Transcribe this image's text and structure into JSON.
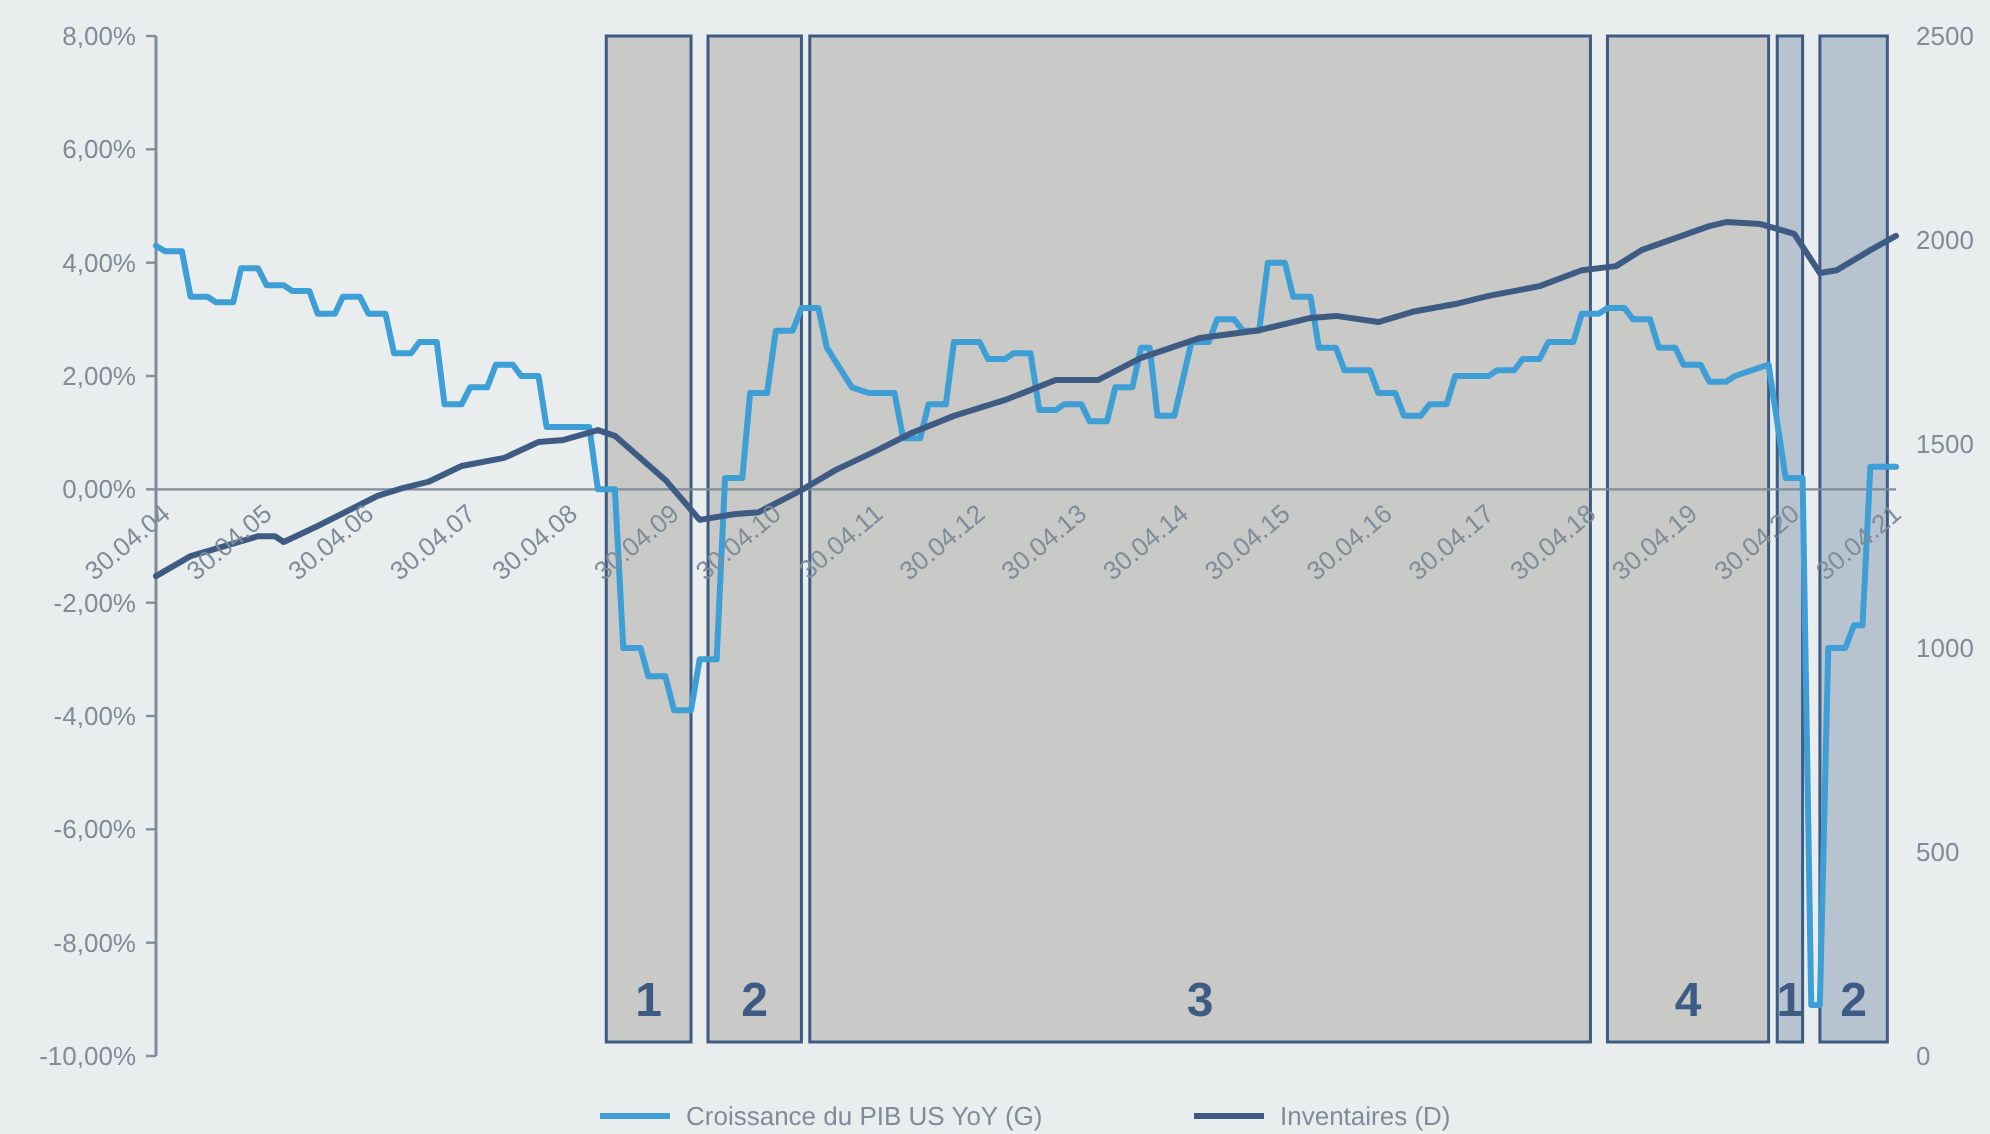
{
  "chart_data": {
    "type": "line",
    "xlim": [
      "2004-04-30",
      "2021-06"
    ],
    "xticks": [
      {
        "value": "2004-04-30",
        "label": "30.04.04"
      },
      {
        "value": "2005-04-30",
        "label": "30.04.05"
      },
      {
        "value": "2006-04-30",
        "label": "30.04.06"
      },
      {
        "value": "2007-04-30",
        "label": "30.04.07"
      },
      {
        "value": "2008-04-30",
        "label": "30.04.08"
      },
      {
        "value": "2009-04-30",
        "label": "30.04.09"
      },
      {
        "value": "2010-04-30",
        "label": "30.04.10"
      },
      {
        "value": "2011-04-30",
        "label": "30.04.11"
      },
      {
        "value": "2012-04-30",
        "label": "30.04.12"
      },
      {
        "value": "2013-04-30",
        "label": "30.04.13"
      },
      {
        "value": "2014-04-30",
        "label": "30.04.14"
      },
      {
        "value": "2015-04-30",
        "label": "30.04.15"
      },
      {
        "value": "2016-04-30",
        "label": "30.04.16"
      },
      {
        "value": "2017-04-30",
        "label": "30.04.17"
      },
      {
        "value": "2018-04-30",
        "label": "30.04.18"
      },
      {
        "value": "2019-04-30",
        "label": "30.04.19"
      },
      {
        "value": "2020-04-30",
        "label": "30.04.20"
      },
      {
        "value": "2021-04-30",
        "label": "30.04.21"
      }
    ],
    "ylim": [
      -10,
      8
    ],
    "yticks": [
      {
        "value": -10,
        "label": "-10,00%"
      },
      {
        "value": -8,
        "label": "-8,00%"
      },
      {
        "value": -6,
        "label": "-6,00%"
      },
      {
        "value": -4,
        "label": "-4,00%"
      },
      {
        "value": -2,
        "label": "-2,00%"
      },
      {
        "value": 0,
        "label": "0,00%"
      },
      {
        "value": 2,
        "label": "2,00%"
      },
      {
        "value": 4,
        "label": "4,00%"
      },
      {
        "value": 6,
        "label": "6,00%"
      },
      {
        "value": 8,
        "label": "8,00%"
      }
    ],
    "y2lim": [
      0,
      2500
    ],
    "y2ticks": [
      0,
      500,
      1000,
      1500,
      2000,
      2500
    ],
    "grid": false,
    "legend": "bottom",
    "series": [
      {
        "name": "Croissance du PIB US YoY (G)",
        "color": "#3d9fd6",
        "x": [
          "2004-04-30",
          "2004-06",
          "2004-08",
          "2004-09",
          "2004-11",
          "2004-12",
          "2005-02",
          "2005-03",
          "2005-05",
          "2005-06",
          "2005-08",
          "2005-09",
          "2005-11",
          "2005-12",
          "2006-02",
          "2006-03",
          "2006-05",
          "2006-06",
          "2006-08",
          "2006-09",
          "2006-11",
          "2006-12",
          "2007-02",
          "2007-03",
          "2007-05",
          "2007-06",
          "2007-08",
          "2007-09",
          "2007-11",
          "2007-12",
          "2008-02",
          "2008-03",
          "2008-08",
          "2008-09",
          "2008-11",
          "2008-12",
          "2009-02",
          "2009-03",
          "2009-05",
          "2009-06",
          "2009-08",
          "2009-09",
          "2009-11",
          "2009-12",
          "2010-02",
          "2010-03",
          "2010-05",
          "2010-06",
          "2010-08",
          "2010-09",
          "2010-11",
          "2010-12",
          "2011-03",
          "2011-05",
          "2011-08",
          "2011-09",
          "2011-11",
          "2011-12",
          "2012-02",
          "2012-03",
          "2012-06",
          "2012-07",
          "2012-09",
          "2012-10",
          "2012-12",
          "2013-01",
          "2013-03",
          "2013-04",
          "2013-06",
          "2013-07",
          "2013-09",
          "2013-10",
          "2013-12",
          "2014-01",
          "2014-02",
          "2014-03",
          "2014-05",
          "2014-07",
          "2014-09",
          "2014-10",
          "2014-12",
          "2015-01",
          "2015-03",
          "2015-04",
          "2015-06",
          "2015-07",
          "2015-09",
          "2015-10",
          "2015-12",
          "2016-01",
          "2016-04",
          "2016-05",
          "2016-07",
          "2016-08",
          "2016-10",
          "2016-11",
          "2017-01",
          "2017-02",
          "2017-06",
          "2017-07",
          "2017-09",
          "2017-10",
          "2017-12",
          "2018-01",
          "2018-04",
          "2018-05",
          "2018-07",
          "2018-08",
          "2018-10",
          "2018-11",
          "2019-01",
          "2019-02",
          "2019-04",
          "2019-05",
          "2019-07",
          "2019-08",
          "2019-10",
          "2019-11",
          "2020-03",
          "2020-05",
          "2020-07",
          "2020-08",
          "2020-09",
          "2020-10",
          "2020-12",
          "2021-01",
          "2021-02",
          "2021-03",
          "2021-06"
        ],
        "values": [
          4.3,
          4.2,
          4.2,
          3.4,
          3.4,
          3.3,
          3.3,
          3.9,
          3.9,
          3.6,
          3.6,
          3.5,
          3.5,
          3.1,
          3.1,
          3.4,
          3.4,
          3.1,
          3.1,
          2.4,
          2.4,
          2.6,
          2.6,
          1.5,
          1.5,
          1.8,
          1.8,
          2.2,
          2.2,
          2.0,
          2.0,
          1.1,
          1.1,
          0.0,
          0.0,
          -2.8,
          -2.8,
          -3.3,
          -3.3,
          -3.9,
          -3.9,
          -3.0,
          -3.0,
          0.2,
          0.2,
          1.7,
          1.7,
          2.8,
          2.8,
          3.2,
          3.2,
          2.5,
          1.8,
          1.7,
          1.7,
          0.9,
          0.9,
          1.5,
          1.5,
          2.6,
          2.6,
          2.3,
          2.3,
          2.4,
          2.4,
          1.4,
          1.4,
          1.5,
          1.5,
          1.2,
          1.2,
          1.8,
          1.8,
          2.5,
          2.5,
          1.3,
          1.3,
          2.6,
          2.6,
          3.0,
          3.0,
          2.8,
          2.8,
          4.0,
          4.0,
          3.4,
          3.4,
          2.5,
          2.5,
          2.1,
          2.1,
          1.7,
          1.7,
          1.3,
          1.3,
          1.5,
          1.5,
          2.0,
          2.0,
          2.1,
          2.1,
          2.3,
          2.3,
          2.6,
          2.6,
          3.1,
          3.1,
          3.2,
          3.2,
          3.0,
          3.0,
          2.5,
          2.5,
          2.2,
          2.2,
          1.9,
          1.9,
          2.0,
          2.2,
          0.2,
          0.2,
          -9.1,
          -9.1,
          -2.8,
          -2.8,
          -2.4,
          -2.4,
          0.4,
          0.4
        ]
      },
      {
        "name": "Inventaires (D)",
        "color": "#3e5b83",
        "axis": "y2",
        "x": [
          "2004-04-30",
          "2004-09",
          "2005-05",
          "2005-07",
          "2005-08",
          "2005-12",
          "2006-07",
          "2006-10",
          "2007-01",
          "2007-05",
          "2007-10",
          "2008-02",
          "2008-05",
          "2008-09",
          "2008-11",
          "2009-05",
          "2009-09",
          "2010-01",
          "2010-04",
          "2010-09",
          "2011-01",
          "2011-06",
          "2011-10",
          "2012-03",
          "2012-09",
          "2013-03",
          "2013-08",
          "2014-01",
          "2014-08",
          "2015-03",
          "2015-09",
          "2015-12",
          "2016-05",
          "2016-09",
          "2017-02",
          "2017-06",
          "2017-12",
          "2018-05",
          "2018-09",
          "2018-12",
          "2019-08",
          "2019-10",
          "2020-02",
          "2020-06",
          "2020-09",
          "2020-11",
          "2021-03",
          "2021-06"
        ],
        "values": [
          1176,
          1225,
          1274,
          1274,
          1260,
          1299,
          1372,
          1392,
          1407,
          1446,
          1466,
          1505,
          1510,
          1534,
          1520,
          1412,
          1314,
          1328,
          1333,
          1387,
          1436,
          1485,
          1527,
          1569,
          1608,
          1657,
          1657,
          1711,
          1760,
          1779,
          1809,
          1814,
          1799,
          1824,
          1843,
          1863,
          1887,
          1926,
          1936,
          1975,
          2034,
          2044,
          2039,
          2015,
          1919,
          1926,
          1975,
          2010
        ]
      }
    ],
    "bands": [
      {
        "axis": "x",
        "from": "2008-10",
        "to": "2009-08",
        "label": "1",
        "color": "#c9c9c7"
      },
      {
        "axis": "x",
        "from": "2009-10",
        "to": "2010-09",
        "label": "2",
        "color": "#c9c9c7"
      },
      {
        "axis": "x",
        "from": "2010-10",
        "to": "2018-06",
        "label": "3",
        "color": "#c9c9c7"
      },
      {
        "axis": "x",
        "from": "2018-08",
        "to": "2020-03",
        "label": "4",
        "color": "#c9c9c7"
      },
      {
        "axis": "x",
        "from": "2020-04",
        "to": "2020-07",
        "label": "1",
        "color": "#b7c4d0"
      },
      {
        "axis": "x",
        "from": "2020-09",
        "to": "2021-05",
        "label": "2",
        "color": "#b7c4d0"
      }
    ]
  }
}
